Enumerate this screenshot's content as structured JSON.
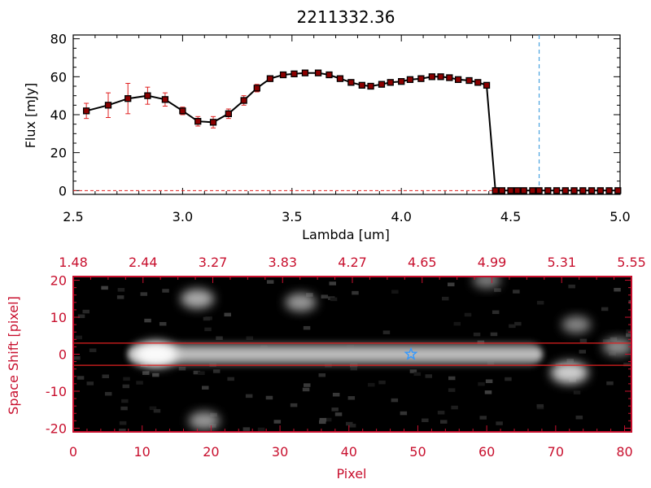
{
  "chart_data": [
    {
      "type": "line",
      "title": "2211332.36",
      "xlabel": "Lambda [um]",
      "ylabel": "Flux [mJy]",
      "xlim": [
        2.5,
        5.0
      ],
      "ylim": [
        -2,
        82
      ],
      "xticks": [
        "2.5",
        "3.0",
        "3.5",
        "4.0",
        "4.5",
        "5.0"
      ],
      "yticks": [
        "0",
        "20",
        "40",
        "60",
        "80"
      ],
      "marker_color": "#8b0000",
      "errorbar_color": "#e02020",
      "cutoff_line": {
        "x": 4.63,
        "color": "#4aa3df",
        "style": "dashed"
      },
      "zero_line_color": "#e02020",
      "x": [
        2.56,
        2.66,
        2.75,
        2.84,
        2.92,
        3.0,
        3.07,
        3.14,
        3.21,
        3.28,
        3.34,
        3.4,
        3.46,
        3.51,
        3.56,
        3.62,
        3.67,
        3.72,
        3.77,
        3.82,
        3.86,
        3.91,
        3.95,
        4.0,
        4.04,
        4.09,
        4.14,
        4.18,
        4.22,
        4.26,
        4.31,
        4.35,
        4.39,
        4.43,
        4.46,
        4.5,
        4.53,
        4.56,
        4.6,
        4.63,
        4.67,
        4.71,
        4.75,
        4.79,
        4.83,
        4.87,
        4.91,
        4.95,
        4.99
      ],
      "y": [
        42,
        45,
        48.5,
        50,
        48,
        42,
        36.5,
        36,
        40.5,
        47.5,
        54,
        59,
        61,
        61.5,
        62,
        62,
        61,
        59,
        57,
        55.5,
        55,
        56,
        57,
        57.5,
        58.5,
        59,
        60,
        60,
        59.5,
        58.5,
        58,
        57,
        55.5,
        0,
        0,
        0,
        0,
        0,
        0,
        0,
        0,
        0,
        0,
        0,
        0,
        0,
        0,
        0,
        0
      ],
      "yerr": [
        4,
        6.5,
        8,
        4.5,
        3.5,
        2,
        2.5,
        3,
        2.5,
        2.5,
        2,
        1.5,
        0.5,
        0.5,
        0.5,
        0.5,
        0.5,
        0.5,
        0.5,
        0.5,
        0.5,
        0.5,
        0.5,
        0.5,
        0.5,
        0.5,
        0.5,
        0.5,
        0.5,
        0.5,
        0.5,
        0.5,
        0.5,
        0,
        0,
        0,
        0,
        0,
        0,
        0,
        0,
        0,
        0,
        0,
        0,
        0,
        0,
        0,
        0
      ]
    },
    {
      "type": "heatmap",
      "xlabel": "Pixel",
      "ylabel": "Space Shift [pixel]",
      "xlim": [
        0,
        81
      ],
      "ylim": [
        -21,
        21
      ],
      "xticks": [
        "0",
        "10",
        "20",
        "30",
        "40",
        "50",
        "60",
        "70",
        "80"
      ],
      "yticks": [
        "20",
        "10",
        "0",
        "-10",
        "-20"
      ],
      "top_axis_ticks": [
        "1.48",
        "2.44",
        "3.27",
        "3.83",
        "4.27",
        "4.65",
        "4.99",
        "5.31",
        "5.55"
      ],
      "axis_color": "#c8102e",
      "background": "#000000",
      "extraction_band": [
        -3,
        3
      ],
      "band_color": "#e02020",
      "trace_y": 0,
      "trace_x_range": [
        8,
        68
      ],
      "star_marker": {
        "x": 49,
        "y": 0,
        "color": "#3399ff"
      },
      "sources": [
        {
          "x": 12,
          "y": 0,
          "peak": 1.0
        },
        {
          "x": 72,
          "y": -5,
          "peak": 0.75
        },
        {
          "x": 18,
          "y": 15,
          "peak": 0.55
        },
        {
          "x": 33,
          "y": 14,
          "peak": 0.45
        },
        {
          "x": 19,
          "y": -18,
          "peak": 0.45
        },
        {
          "x": 73,
          "y": 8,
          "peak": 0.35
        },
        {
          "x": 60,
          "y": 20,
          "peak": 0.3
        },
        {
          "x": 79,
          "y": 2,
          "peak": 0.4
        }
      ]
    }
  ],
  "colors": {
    "line": "#000000",
    "marker": "#8b0000",
    "red_axis": "#c8102e"
  }
}
